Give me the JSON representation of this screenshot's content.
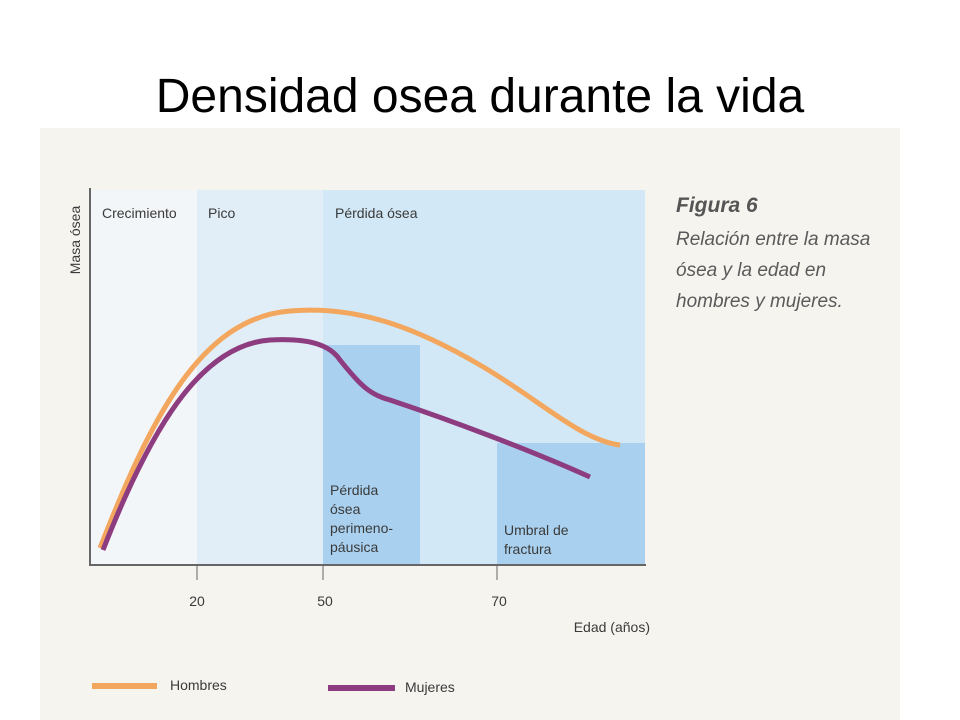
{
  "header": {
    "title": "Densidad osea durante la vida"
  },
  "figure": {
    "label": "Figura 6",
    "caption": [
      "Relación entre la masa",
      "ósea y la edad en",
      "hombres y mujeres."
    ]
  },
  "diagram": {
    "y_label": "Masa ósea",
    "x_label": "Edad (años)",
    "zones": [
      "Crecimiento",
      "Pico",
      "Pérdida ósea"
    ],
    "boxes": [
      [
        "Pérdida",
        "ósea",
        "perimeno-",
        "páusica"
      ],
      [
        "Umbral de",
        "fractura"
      ]
    ],
    "x_ticks": [
      20,
      50,
      70
    ]
  },
  "legend": [
    "Hombres",
    "Mujeres"
  ]
}
